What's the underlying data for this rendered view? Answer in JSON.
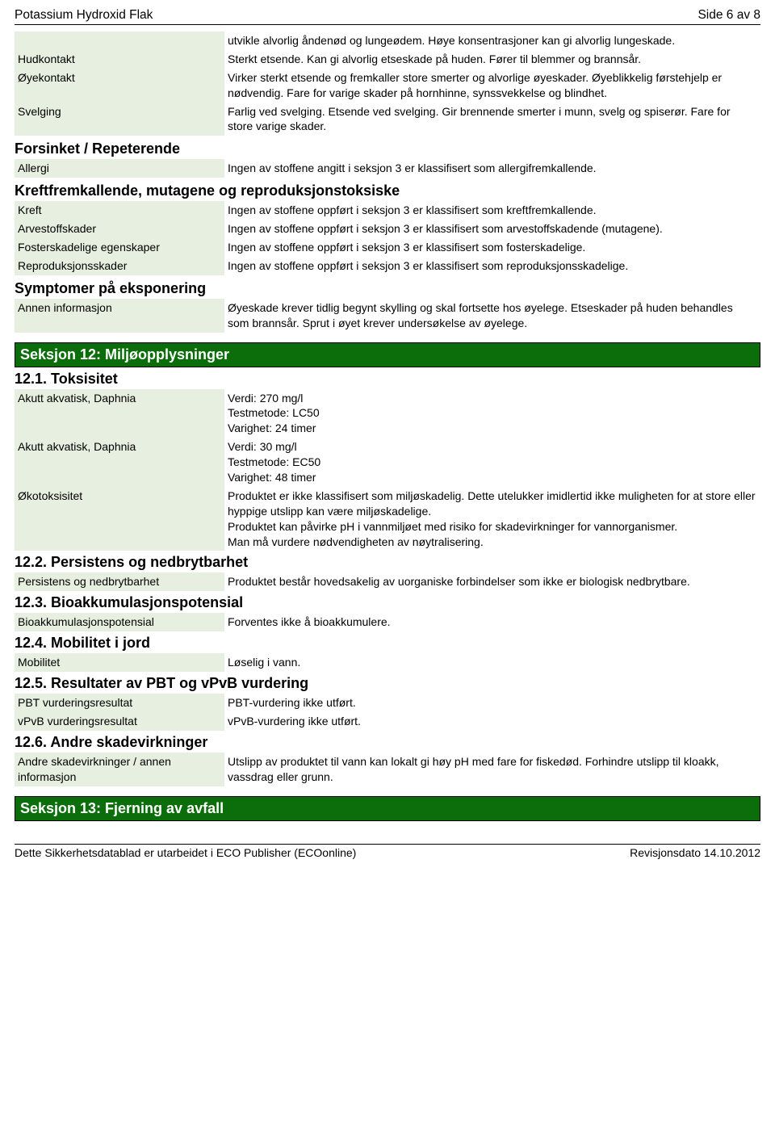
{
  "header": {
    "title": "Potassium Hydroxid Flak",
    "page": "Side 6 av 8"
  },
  "toprows": [
    {
      "label": "",
      "value": "utvikle alvorlig åndenød og lungeødem. Høye konsentrasjoner kan gi alvorlig lungeskade."
    },
    {
      "label": "Hudkontakt",
      "value": "Sterkt etsende. Kan gi alvorlig etseskade på huden. Fører til blemmer og brannsår."
    },
    {
      "label": "Øyekontakt",
      "value": "Virker sterkt etsende og fremkaller store smerter og alvorlige øyeskader. Øyeblikkelig førstehjelp er nødvendig. Fare for varige skader på hornhinne, synssvekkelse og blindhet."
    },
    {
      "label": "Svelging",
      "value": "Farlig ved svelging. Etsende ved svelging. Gir brennende smerter i munn, svelg og spiserør. Fare for store varige skader."
    }
  ],
  "forsinket": {
    "heading": "Forsinket / Repeterende",
    "rows": [
      {
        "label": "Allergi",
        "value": "Ingen av stoffene angitt i seksjon 3 er klassifisert som allergifremkallende."
      }
    ]
  },
  "kreft": {
    "heading": "Kreftfremkallende, mutagene og reproduksjonstoksiske",
    "rows": [
      {
        "label": "Kreft",
        "value": "Ingen av stoffene oppført i seksjon 3 er klassifisert som kreftfremkallende."
      },
      {
        "label": "Arvestoffskader",
        "value": "Ingen av stoffene oppført i seksjon 3 er klassifisert som arvestoffskadende (mutagene)."
      },
      {
        "label": "Fosterskadelige egenskaper",
        "value": "Ingen av stoffene oppført i seksjon 3 er klassifisert som fosterskadelige."
      },
      {
        "label": "Reproduksjonsskader",
        "value": "Ingen av stoffene oppført i seksjon 3 er klassifisert som reproduksjonsskadelige."
      }
    ]
  },
  "symptomer": {
    "heading": "Symptomer på eksponering",
    "rows": [
      {
        "label": "Annen informasjon",
        "value": "Øyeskade krever tidlig begynt skylling og skal fortsette hos øyelege. Etseskader på huden behandles som brannsår. Sprut i øyet krever undersøkelse av øyelege."
      }
    ]
  },
  "section12": {
    "title": "Seksjon 12: Miljøopplysninger",
    "s1": {
      "title": "12.1. Toksisitet",
      "rows": [
        {
          "label": "Akutt akvatisk, Daphnia",
          "value": "Verdi: 270 mg/l\nTestmetode: LC50\nVarighet: 24 timer"
        },
        {
          "label": "Akutt akvatisk, Daphnia",
          "value": "Verdi: 30 mg/l\nTestmetode: EC50\nVarighet: 48 timer"
        },
        {
          "label": "Økotoksisitet",
          "value": "Produktet er ikke klassifisert som miljøskadelig. Dette utelukker imidlertid ikke muligheten for at store eller hyppige utslipp kan være miljøskadelige.\nProduktet kan påvirke pH i vannmiljøet med risiko for skadevirkninger for vannorganismer.\nMan må vurdere nødvendigheten av nøytralisering."
        }
      ]
    },
    "s2": {
      "title": "12.2. Persistens og nedbrytbarhet",
      "rows": [
        {
          "label": "Persistens og nedbrytbarhet",
          "value": "Produktet består hovedsakelig av uorganiske forbindelser som ikke er biologisk nedbrytbare."
        }
      ]
    },
    "s3": {
      "title": "12.3. Bioakkumulasjonspotensial",
      "rows": [
        {
          "label": "Bioakkumulasjonspotensial",
          "value": "Forventes ikke å bioakkumulere."
        }
      ]
    },
    "s4": {
      "title": "12.4. Mobilitet i jord",
      "rows": [
        {
          "label": "Mobilitet",
          "value": "Løselig i vann."
        }
      ]
    },
    "s5": {
      "title": "12.5. Resultater av PBT og vPvB vurdering",
      "rows": [
        {
          "label": "PBT vurderingsresultat",
          "value": "PBT-vurdering ikke utført."
        },
        {
          "label": "vPvB vurderingsresultat",
          "value": "vPvB-vurdering ikke utført."
        }
      ]
    },
    "s6": {
      "title": "12.6. Andre skadevirkninger",
      "rows": [
        {
          "label": "Andre skadevirkninger / annen informasjon",
          "value": "Utslipp av produktet til vann kan lokalt gi høy pH med fare for fiskedød. Forhindre utslipp til kloakk, vassdrag eller grunn."
        }
      ]
    }
  },
  "section13": {
    "title": "Seksjon 13: Fjerning av avfall"
  },
  "footer": {
    "left": "Dette Sikkerhetsdatablad er utarbeidet i ECO Publisher (ECOonline)",
    "right": "Revisjonsdato 14.10.2012"
  }
}
